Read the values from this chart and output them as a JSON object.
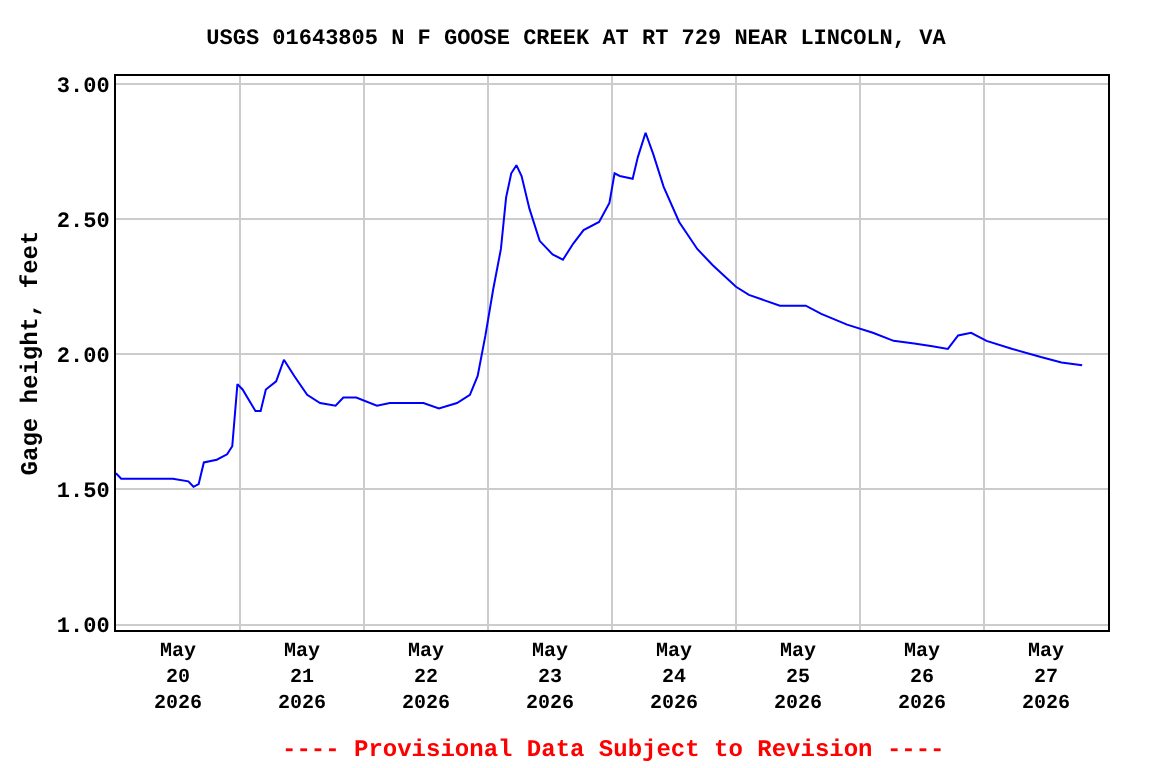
{
  "chart_data": {
    "type": "line",
    "title": "USGS 01643805 N F GOOSE CREEK AT RT 729 NEAR LINCOLN, VA",
    "ylabel": "Gage height, feet",
    "x": [
      "2026-05-20T00:00",
      "2026-05-20T01:00",
      "2026-05-20T11:00",
      "2026-05-20T14:00",
      "2026-05-20T15:00",
      "2026-05-20T16:00",
      "2026-05-20T17:00",
      "2026-05-20T19:30",
      "2026-05-20T21:30",
      "2026-05-20T22:30",
      "2026-05-20T23:30",
      "2026-05-21T00:30",
      "2026-05-21T03:00",
      "2026-05-21T04:00",
      "2026-05-21T05:00",
      "2026-05-21T07:00",
      "2026-05-21T08:30",
      "2026-05-21T10:30",
      "2026-05-21T13:00",
      "2026-05-21T15:30",
      "2026-05-21T18:30",
      "2026-05-21T20:00",
      "2026-05-21T22:30",
      "2026-05-22T02:30",
      "2026-05-22T05:00",
      "2026-05-22T11:30",
      "2026-05-22T14:30",
      "2026-05-22T18:00",
      "2026-05-22T20:30",
      "2026-05-22T22:00",
      "2026-05-22T23:30",
      "2026-05-23T01:00",
      "2026-05-23T02:30",
      "2026-05-23T03:30",
      "2026-05-23T04:30",
      "2026-05-23T05:30",
      "2026-05-23T06:30",
      "2026-05-23T08:00",
      "2026-05-23T10:00",
      "2026-05-23T12:30",
      "2026-05-23T14:30",
      "2026-05-23T16:30",
      "2026-05-23T18:30",
      "2026-05-23T21:30",
      "2026-05-23T23:30",
      "2026-05-24T00:30",
      "2026-05-24T01:30",
      "2026-05-24T04:00",
      "2026-05-24T05:00",
      "2026-05-24T06:30",
      "2026-05-24T08:00",
      "2026-05-24T10:00",
      "2026-05-24T13:00",
      "2026-05-24T16:30",
      "2026-05-24T19:30",
      "2026-05-25T00:00",
      "2026-05-25T02:30",
      "2026-05-25T08:30",
      "2026-05-25T13:30",
      "2026-05-25T16:30",
      "2026-05-25T21:30",
      "2026-05-26T02:30",
      "2026-05-26T06:30",
      "2026-05-26T10:30",
      "2026-05-26T14:00",
      "2026-05-26T17:00",
      "2026-05-26T19:00",
      "2026-05-26T21:30",
      "2026-05-27T00:30",
      "2026-05-27T05:30",
      "2026-05-27T11:00",
      "2026-05-27T15:00",
      "2026-05-27T19:00"
    ],
    "series": [
      {
        "color": "#0000ff",
        "values": [
          1.56,
          1.54,
          1.54,
          1.53,
          1.51,
          1.52,
          1.6,
          1.61,
          1.63,
          1.66,
          1.89,
          1.87,
          1.79,
          1.79,
          1.87,
          1.9,
          1.98,
          1.92,
          1.85,
          1.82,
          1.81,
          1.84,
          1.84,
          1.81,
          1.82,
          1.82,
          1.8,
          1.82,
          1.85,
          1.92,
          2.07,
          2.24,
          2.39,
          2.58,
          2.67,
          2.7,
          2.66,
          2.54,
          2.42,
          2.37,
          2.35,
          2.41,
          2.46,
          2.49,
          2.56,
          2.67,
          2.66,
          2.65,
          2.73,
          2.82,
          2.74,
          2.62,
          2.49,
          2.39,
          2.33,
          2.25,
          2.22,
          2.18,
          2.18,
          2.15,
          2.11,
          2.08,
          2.05,
          2.04,
          2.03,
          2.02,
          2.07,
          2.08,
          2.05,
          2.02,
          1.99,
          1.97,
          1.96
        ]
      }
    ],
    "xlim": [
      "2026-05-20",
      "2026-05-28"
    ],
    "xticks": [
      {
        "value": "2026-05-20T00:00",
        "label": null
      },
      {
        "value": "2026-05-20T12:00",
        "label": "May\n20\n2026"
      },
      {
        "value": "2026-05-21T00:00",
        "label": null
      },
      {
        "value": "2026-05-21T12:00",
        "label": "May\n21\n2026"
      },
      {
        "value": "2026-05-22T00:00",
        "label": null
      },
      {
        "value": "2026-05-22T12:00",
        "label": "May\n22\n2026"
      },
      {
        "value": "2026-05-23T00:00",
        "label": null
      },
      {
        "value": "2026-05-23T12:00",
        "label": "May\n23\n2026"
      },
      {
        "value": "2026-05-24T00:00",
        "label": null
      },
      {
        "value": "2026-05-24T12:00",
        "label": "May\n24\n2026"
      },
      {
        "value": "2026-05-25T00:00",
        "label": null
      },
      {
        "value": "2026-05-25T12:00",
        "label": "May\n25\n2026"
      },
      {
        "value": "2026-05-26T00:00",
        "label": null
      },
      {
        "value": "2026-05-26T12:00",
        "label": "May\n26\n2026"
      },
      {
        "value": "2026-05-27T00:00",
        "label": null
      },
      {
        "value": "2026-05-27T12:00",
        "label": "May\n27\n2026"
      },
      {
        "value": "2026-05-28T00:00",
        "label": null
      }
    ],
    "ylim": [
      0.98,
      3.03
    ],
    "yticks": [
      {
        "value": 1,
        "label": "1.00"
      },
      {
        "value": 1.5,
        "label": "1.50"
      },
      {
        "value": 2,
        "label": "2.00"
      },
      {
        "value": 2.5,
        "label": "2.50"
      },
      {
        "value": 3,
        "label": "3.00"
      }
    ],
    "grid": true,
    "marker": "none",
    "line_style": "solid",
    "annotations": [
      "---- Provisional Data Subject to Revision ----"
    ]
  }
}
